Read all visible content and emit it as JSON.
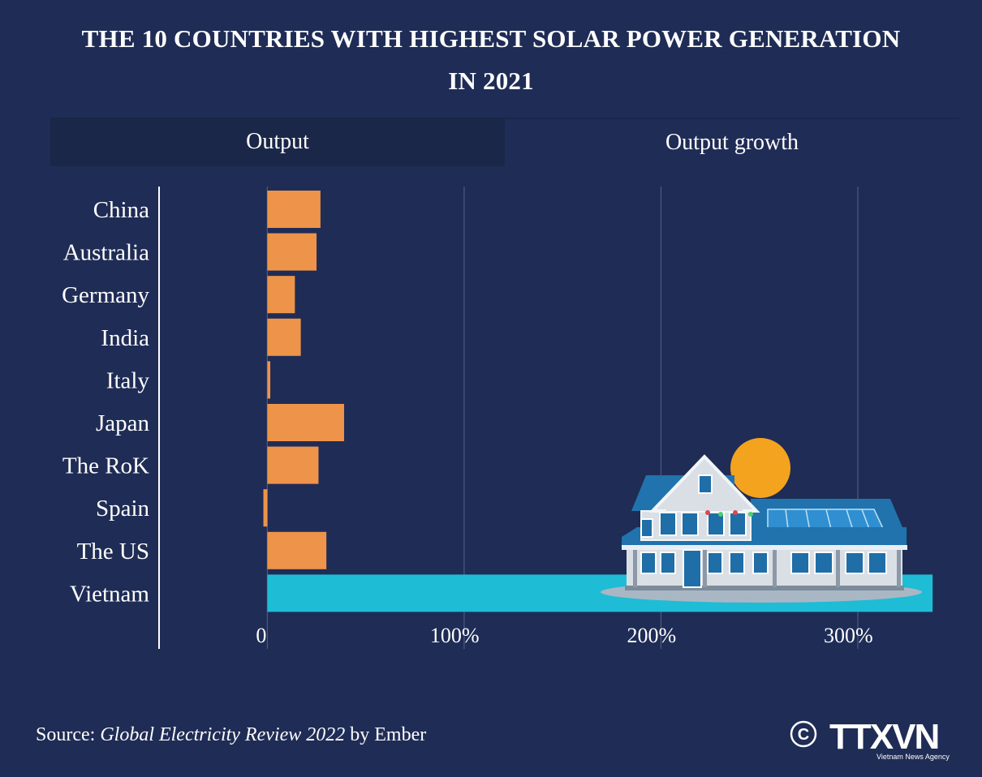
{
  "header": {
    "title_line1": "THE 10 COUNTRIES WITH HIGHEST SOLAR POWER GENERATION",
    "title_line2": "IN 2021"
  },
  "tabs": [
    {
      "label": "Output",
      "active": false
    },
    {
      "label": "Output growth",
      "active": true
    }
  ],
  "chart_data": {
    "type": "bar",
    "orientation": "horizontal",
    "categories": [
      "China",
      "Australia",
      "Germany",
      "India",
      "Italy",
      "Japan",
      "The RoK",
      "Spain",
      "The US",
      "Vietnam"
    ],
    "values": [
      27,
      25,
      14,
      17,
      1.5,
      39,
      26,
      -2,
      30,
      338
    ],
    "xlim": [
      -55,
      340
    ],
    "xticks": [
      0,
      100,
      200,
      300
    ],
    "xtick_labels": [
      "0",
      "100%",
      "200%",
      "300%"
    ],
    "grid": "vertical",
    "colors": {
      "default": "#ee944a",
      "highlight": "#1fbcd6"
    },
    "highlight_category": "Vietnam"
  },
  "footer": {
    "source_prefix": "Source: ",
    "source_title": "Global Electricity Review 2022",
    "source_suffix": " by Ember"
  },
  "logo": {
    "copyright": "©",
    "wordmark": "TTXVN",
    "tagline": "Vietnam News Agency"
  },
  "colors": {
    "background": "#1f2d56",
    "tab_inactive": "#1a2749",
    "bar": "#ee944a",
    "highlight": "#1fbcd6",
    "sun": "#f4a31f",
    "roof": "#1f6ea8"
  }
}
